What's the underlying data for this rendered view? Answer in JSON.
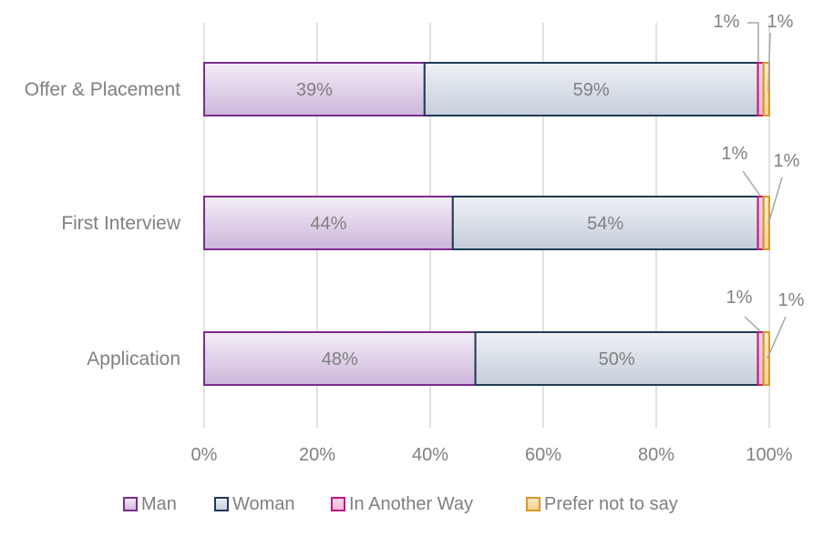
{
  "chart_data": {
    "type": "bar",
    "orientation": "horizontal",
    "stacked": true,
    "categories": [
      "Offer & Placement",
      "First Interview",
      "Application"
    ],
    "series": [
      {
        "name": "Man",
        "values": [
          39,
          44,
          48
        ],
        "labels": [
          "39%",
          "44%",
          "48%"
        ],
        "color": "#7B2C8E",
        "fill_top": "#F3EEF7",
        "fill_bottom": "#CDB6DC"
      },
      {
        "name": "Woman",
        "values": [
          59,
          54,
          50
        ],
        "labels": [
          "59%",
          "54%",
          "50%"
        ],
        "color": "#1F3B57",
        "fill_top": "#EEF1F5",
        "fill_bottom": "#C5CEDB"
      },
      {
        "name": "In Another Way",
        "values": [
          1,
          1,
          1
        ],
        "labels": [
          "1%",
          "1%",
          "1%"
        ],
        "color": "#C2187D",
        "fill_top": "#F9D8EA",
        "fill_bottom": "#F4B5D8"
      },
      {
        "name": "Prefer not to say",
        "values": [
          1,
          1,
          1
        ],
        "labels": [
          "1%",
          "1%",
          "1%"
        ],
        "color": "#D89A2A",
        "fill_top": "#FBE8C6",
        "fill_bottom": "#F6D190"
      }
    ],
    "xlim": [
      0,
      100
    ],
    "xticks": [
      "0%",
      "20%",
      "40%",
      "60%",
      "80%",
      "100%"
    ],
    "grid": true,
    "legend": "bottom"
  }
}
